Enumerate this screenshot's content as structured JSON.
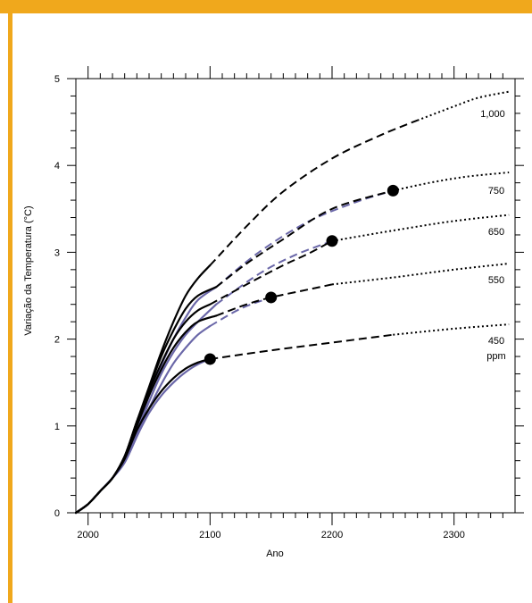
{
  "colors": {
    "frame": "#f0a81c",
    "black_curve": "#000000",
    "blue_curve": "#6a67a8",
    "background": "#ffffff"
  },
  "chart_data": {
    "type": "line",
    "xlabel": "Ano",
    "ylabel": "Variação da Temperatura (°C)",
    "xlim": [
      1990,
      2350
    ],
    "ylim": [
      0,
      5
    ],
    "xticks": [
      2000,
      2100,
      2200,
      2300
    ],
    "yticks": [
      0,
      1,
      2,
      3,
      4,
      5
    ],
    "minor_x_step": 10,
    "minor_y_step": 0.2,
    "grid": false,
    "line_labels": [
      "1,000",
      "750",
      "650",
      "550",
      "450",
      "ppm"
    ],
    "series": [
      {
        "label": "1,000",
        "style": "black",
        "solid": [
          [
            1990,
            0
          ],
          [
            2000,
            0.1
          ],
          [
            2010,
            0.25
          ],
          [
            2020,
            0.4
          ],
          [
            2030,
            0.65
          ],
          [
            2040,
            1.05
          ],
          [
            2050,
            1.45
          ],
          [
            2060,
            1.85
          ],
          [
            2070,
            2.2
          ],
          [
            2080,
            2.5
          ],
          [
            2090,
            2.7
          ],
          [
            2100,
            2.85
          ]
        ],
        "dashed": [
          [
            2100,
            2.85
          ],
          [
            2130,
            3.3
          ],
          [
            2160,
            3.7
          ],
          [
            2200,
            4.08
          ],
          [
            2240,
            4.35
          ],
          [
            2270,
            4.52
          ]
        ],
        "dotted": [
          [
            2270,
            4.52
          ],
          [
            2300,
            4.68
          ],
          [
            2320,
            4.78
          ],
          [
            2345,
            4.85
          ]
        ]
      },
      {
        "label": "750",
        "style": "black",
        "solid": [
          [
            1990,
            0
          ],
          [
            2000,
            0.1
          ],
          [
            2010,
            0.25
          ],
          [
            2020,
            0.4
          ],
          [
            2030,
            0.65
          ],
          [
            2040,
            1.05
          ],
          [
            2050,
            1.43
          ],
          [
            2060,
            1.8
          ],
          [
            2070,
            2.1
          ],
          [
            2080,
            2.35
          ],
          [
            2090,
            2.5
          ],
          [
            2105,
            2.6
          ]
        ],
        "dashed": [
          [
            2105,
            2.6
          ],
          [
            2130,
            2.87
          ],
          [
            2160,
            3.15
          ],
          [
            2200,
            3.5
          ],
          [
            2250,
            3.71
          ]
        ],
        "dotted": [
          [
            2250,
            3.71
          ],
          [
            2280,
            3.8
          ],
          [
            2310,
            3.87
          ],
          [
            2345,
            3.92
          ]
        ]
      },
      {
        "label": "650",
        "style": "black",
        "solid": [
          [
            1990,
            0
          ],
          [
            2000,
            0.1
          ],
          [
            2010,
            0.25
          ],
          [
            2020,
            0.4
          ],
          [
            2030,
            0.65
          ],
          [
            2040,
            1.05
          ],
          [
            2050,
            1.4
          ],
          [
            2060,
            1.72
          ],
          [
            2070,
            2.0
          ],
          [
            2080,
            2.2
          ],
          [
            2090,
            2.33
          ],
          [
            2100,
            2.4
          ]
        ],
        "dashed": [
          [
            2100,
            2.4
          ],
          [
            2130,
            2.63
          ],
          [
            2160,
            2.85
          ],
          [
            2180,
            2.98
          ],
          [
            2200,
            3.13
          ]
        ],
        "dotted": [
          [
            2200,
            3.13
          ],
          [
            2250,
            3.25
          ],
          [
            2300,
            3.36
          ],
          [
            2345,
            3.43
          ]
        ]
      },
      {
        "label": "550",
        "style": "black",
        "solid": [
          [
            1990,
            0
          ],
          [
            2000,
            0.1
          ],
          [
            2010,
            0.25
          ],
          [
            2020,
            0.4
          ],
          [
            2030,
            0.65
          ],
          [
            2040,
            1.0
          ],
          [
            2050,
            1.35
          ],
          [
            2060,
            1.65
          ],
          [
            2070,
            1.9
          ],
          [
            2080,
            2.08
          ],
          [
            2090,
            2.2
          ],
          [
            2105,
            2.27
          ]
        ],
        "dashed": [
          [
            2105,
            2.27
          ],
          [
            2130,
            2.4
          ],
          [
            2150,
            2.48
          ],
          [
            2180,
            2.57
          ],
          [
            2200,
            2.63
          ]
        ],
        "dotted": [
          [
            2200,
            2.63
          ],
          [
            2250,
            2.71
          ],
          [
            2300,
            2.8
          ],
          [
            2345,
            2.87
          ]
        ]
      },
      {
        "label": "450",
        "style": "black",
        "solid": [
          [
            1990,
            0
          ],
          [
            2000,
            0.1
          ],
          [
            2010,
            0.25
          ],
          [
            2020,
            0.4
          ],
          [
            2030,
            0.62
          ],
          [
            2040,
            0.95
          ],
          [
            2050,
            1.2
          ],
          [
            2060,
            1.4
          ],
          [
            2070,
            1.55
          ],
          [
            2080,
            1.66
          ],
          [
            2090,
            1.73
          ],
          [
            2100,
            1.77
          ]
        ],
        "dashed": [
          [
            2100,
            1.77
          ],
          [
            2150,
            1.87
          ],
          [
            2200,
            1.96
          ],
          [
            2250,
            2.05
          ]
        ],
        "dotted": [
          [
            2250,
            2.05
          ],
          [
            2300,
            2.12
          ],
          [
            2345,
            2.17
          ]
        ]
      },
      {
        "label": "750",
        "style": "blue",
        "solid": [
          [
            1990,
            0
          ],
          [
            2000,
            0.1
          ],
          [
            2010,
            0.25
          ],
          [
            2020,
            0.4
          ],
          [
            2030,
            0.62
          ],
          [
            2040,
            0.95
          ],
          [
            2050,
            1.35
          ],
          [
            2060,
            1.7
          ],
          [
            2070,
            2.0
          ],
          [
            2080,
            2.25
          ],
          [
            2090,
            2.45
          ],
          [
            2105,
            2.6
          ]
        ],
        "dashed": [
          [
            2105,
            2.6
          ],
          [
            2140,
            3.0
          ],
          [
            2180,
            3.35
          ],
          [
            2220,
            3.58
          ],
          [
            2250,
            3.71
          ]
        ]
      },
      {
        "label": "650",
        "style": "blue",
        "solid": [
          [
            1990,
            0
          ],
          [
            2000,
            0.1
          ],
          [
            2010,
            0.25
          ],
          [
            2020,
            0.4
          ],
          [
            2030,
            0.6
          ],
          [
            2040,
            0.92
          ],
          [
            2050,
            1.28
          ],
          [
            2060,
            1.6
          ],
          [
            2070,
            1.85
          ],
          [
            2080,
            2.05
          ],
          [
            2090,
            2.2
          ],
          [
            2105,
            2.4
          ]
        ],
        "dashed": [
          [
            2105,
            2.4
          ],
          [
            2140,
            2.75
          ],
          [
            2170,
            2.97
          ],
          [
            2200,
            3.13
          ]
        ]
      },
      {
        "label": "550",
        "style": "blue",
        "solid": [
          [
            1990,
            0
          ],
          [
            2000,
            0.1
          ],
          [
            2010,
            0.25
          ],
          [
            2020,
            0.4
          ],
          [
            2030,
            0.58
          ],
          [
            2040,
            0.88
          ],
          [
            2050,
            1.2
          ],
          [
            2060,
            1.48
          ],
          [
            2070,
            1.72
          ],
          [
            2080,
            1.9
          ],
          [
            2090,
            2.05
          ],
          [
            2100,
            2.15
          ]
        ],
        "dashed": [
          [
            2100,
            2.15
          ],
          [
            2125,
            2.35
          ],
          [
            2150,
            2.48
          ]
        ]
      },
      {
        "label": "450",
        "style": "blue",
        "solid": [
          [
            1990,
            0
          ],
          [
            2000,
            0.1
          ],
          [
            2010,
            0.25
          ],
          [
            2020,
            0.4
          ],
          [
            2030,
            0.58
          ],
          [
            2040,
            0.88
          ],
          [
            2050,
            1.15
          ],
          [
            2060,
            1.35
          ],
          [
            2070,
            1.5
          ],
          [
            2080,
            1.62
          ],
          [
            2090,
            1.71
          ],
          [
            2100,
            1.77
          ]
        ]
      }
    ],
    "markers": [
      {
        "x": 2100,
        "y": 1.77
      },
      {
        "x": 2150,
        "y": 2.48
      },
      {
        "x": 2200,
        "y": 3.13
      },
      {
        "x": 2250,
        "y": 3.71
      }
    ]
  }
}
